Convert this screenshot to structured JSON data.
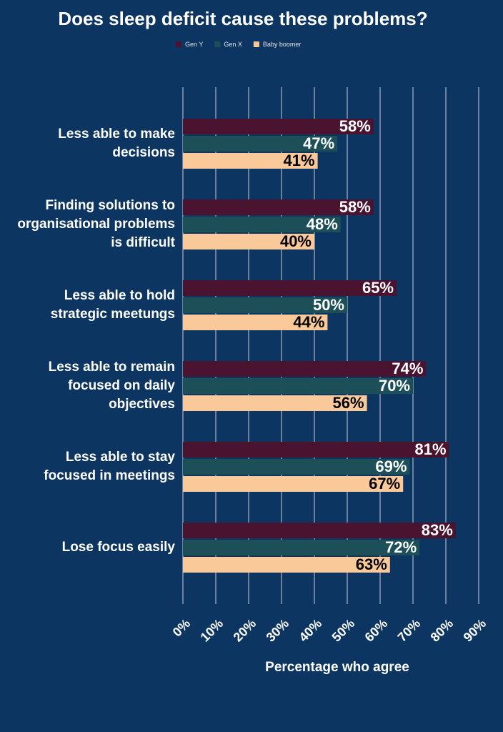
{
  "chart_data": {
    "type": "hbar",
    "title": "Does sleep deficit cause these problems?",
    "x_label": "Percentage who agree",
    "categories": [
      "Less able to make decisions",
      "Finding solutions to organisational problems is difficult",
      "Less able to hold strategic meetungs",
      "Less able to remain focused on daily objectives",
      "Less able to stay focused in meetings",
      "Lose focus easily"
    ],
    "series": [
      {
        "name": "Gen Y",
        "color": "#4a1430",
        "values": [
          58,
          58,
          65,
          74,
          81,
          83
        ],
        "value_labels": [
          "58%",
          "58%",
          "65%",
          "74%",
          "81%",
          "83%"
        ]
      },
      {
        "name": "Gen X",
        "color": "#1c4f57",
        "values": [
          47,
          48,
          50,
          70,
          69,
          72
        ],
        "value_labels": [
          "47%",
          "48%",
          "50%",
          "70%",
          "69%",
          "72%"
        ]
      },
      {
        "name": "Baby boomer",
        "color": "#f9c99a",
        "values": [
          41,
          40,
          44,
          56,
          67,
          63
        ],
        "value_labels": [
          "41%",
          "40%",
          "44%",
          "56%",
          "67%",
          "63%"
        ]
      }
    ],
    "xlim": [
      0,
      90
    ],
    "xticks": [
      {
        "value": 0,
        "label": "0%"
      },
      {
        "value": 10,
        "label": "10%"
      },
      {
        "value": 20,
        "label": "20%"
      },
      {
        "value": 30,
        "label": "30%"
      },
      {
        "value": 40,
        "label": "40%"
      },
      {
        "value": 50,
        "label": "50%"
      },
      {
        "value": 60,
        "label": "60%"
      },
      {
        "value": 70,
        "label": "70%"
      },
      {
        "value": 80,
        "label": "80%"
      },
      {
        "value": 90,
        "label": "90%"
      }
    ],
    "grid": true
  }
}
